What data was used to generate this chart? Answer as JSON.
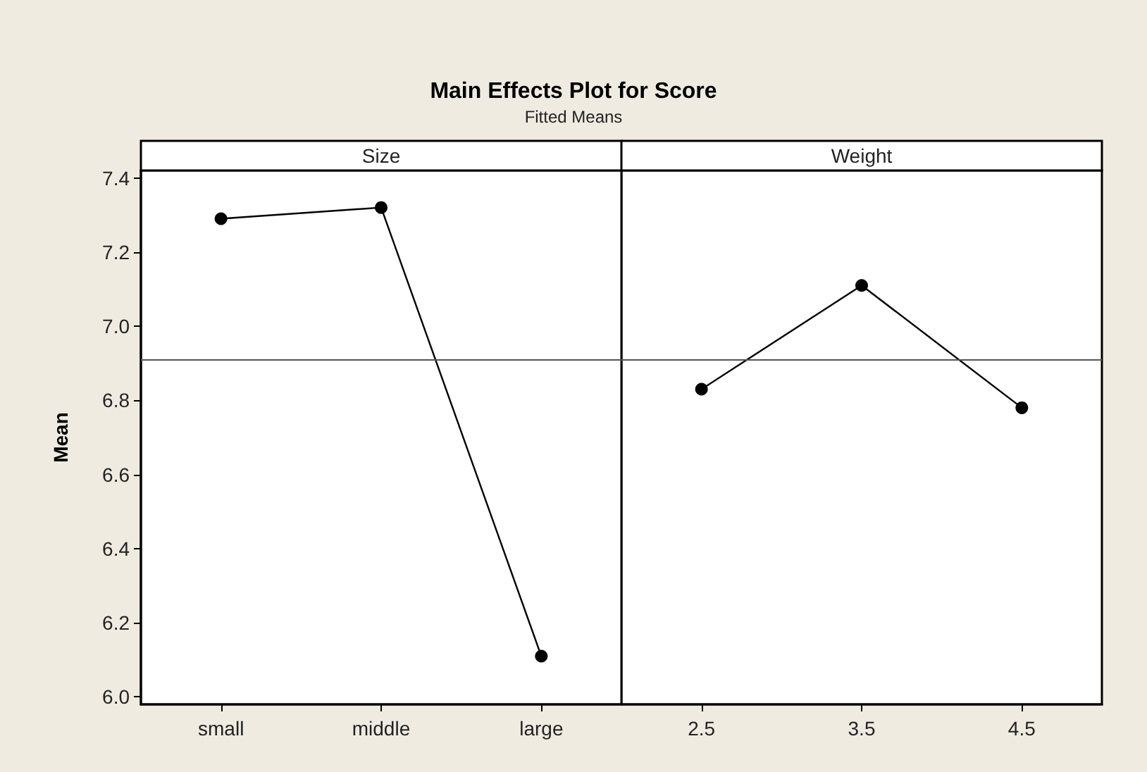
{
  "chart_data": [
    {
      "type": "line",
      "title": "Main Effects Plot for Score",
      "subtitle": "Fitted Means",
      "xlabel": "Size",
      "ylabel": "Mean",
      "categories": [
        "small",
        "middle",
        "large"
      ],
      "series": [
        {
          "color": "#000000",
          "values": [
            7.29,
            7.32,
            6.11
          ]
        }
      ],
      "ylim": [
        5.98,
        7.42
      ],
      "yticks": [
        {
          "value": 6,
          "label": "6.0"
        },
        6.2,
        6.4,
        6.6,
        6.8,
        {
          "value": 7,
          "label": "7.0"
        },
        7.2,
        7.4
      ],
      "ref_lines": [
        {
          "axis": "y",
          "value": 6.91,
          "color": "#555555"
        }
      ],
      "marker": "circle",
      "line_style": "solid",
      "grid": false
    },
    {
      "type": "line",
      "xlabel": "Weight",
      "categories": [
        "2.5",
        "3.5",
        "4.5"
      ],
      "series": [
        {
          "color": "#000000",
          "values": [
            6.83,
            7.11,
            6.78
          ]
        }
      ],
      "ylim": [
        5.98,
        7.42
      ],
      "tick_labels": "x",
      "ref_lines": [
        {
          "axis": "y",
          "value": 6.91,
          "color": "#555555"
        }
      ],
      "marker": "circle",
      "line_style": "solid",
      "grid": false
    }
  ]
}
